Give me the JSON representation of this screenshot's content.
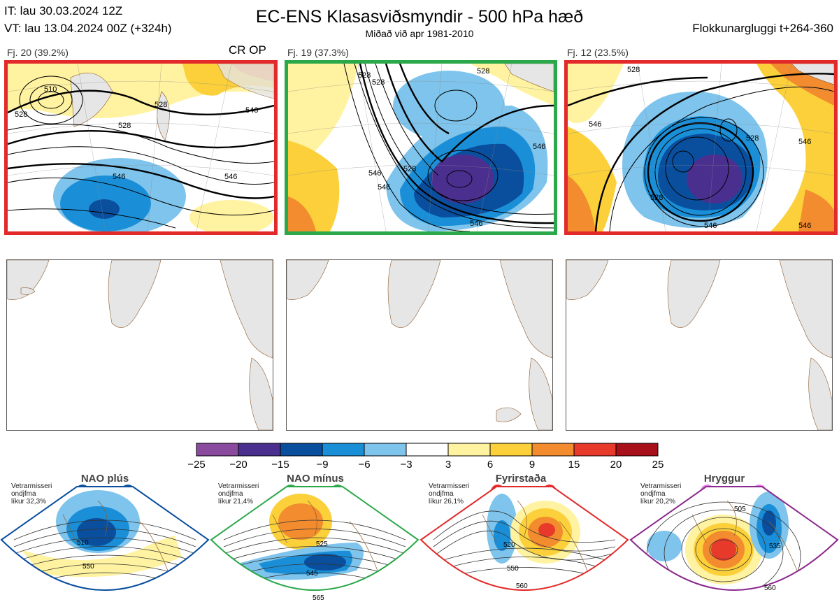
{
  "header": {
    "it_line": "IT: lau 30.03.2024 12Z",
    "vt_line": "VT: lau 13.04.2024 00Z  (+324h)",
    "title": "EC-ENS Klasasviðsmyndir - 500 hPa hæð",
    "subtitle": "Miðað við apr 1981-2010",
    "window": "Flokkunargluggi t+264-360"
  },
  "clusters": [
    {
      "label": "Fj. 20 (39.2%)",
      "badge": "CR OP",
      "border_color": "#e32a2a"
    },
    {
      "label": "Fj. 19 (37.3%)",
      "badge": "",
      "border_color": "#2ba84a"
    },
    {
      "label": "Fj. 12 (23.5%)",
      "badge": "",
      "border_color": "#e32a2a"
    }
  ],
  "contour_labels": {
    "cluster1": [
      "510",
      "528",
      "528",
      "528",
      "546",
      "546",
      "546"
    ],
    "cluster2": [
      "528",
      "528",
      "546",
      "546",
      "528",
      "546",
      "528",
      "546"
    ],
    "cluster3": [
      "528",
      "546",
      "528",
      "546",
      "528",
      "546",
      "546"
    ]
  },
  "chart_data": {
    "type": "heatmap",
    "colorbar": {
      "ticks": [
        "−25",
        "−20",
        "−15",
        "−9",
        "−6",
        "−3",
        "3",
        "6",
        "9",
        "15",
        "20",
        "25"
      ],
      "colors": [
        "#8a4a9e",
        "#4a2f8f",
        "#0a4f9e",
        "#1a8fd8",
        "#7ec4ec",
        "#ffffff",
        "#fff2a0",
        "#fbd03a",
        "#f28c2e",
        "#e83a2a",
        "#a8111a"
      ]
    }
  },
  "regimes": [
    {
      "name": "NAO plús",
      "stat_line1": "Vetrarmisseri",
      "stat_line2": "ondjfma",
      "stat_line3": "líkur 32,3%",
      "color": "#0a4f9e",
      "labels": [
        "510",
        "550"
      ]
    },
    {
      "name": "NAO mínus",
      "stat_line1": "Vetrarmisseri",
      "stat_line2": "ondjfma",
      "stat_line3": "líkur 21,4%",
      "color": "#2ba84a",
      "labels": [
        "525",
        "545",
        "565"
      ]
    },
    {
      "name": "Fyrirstaða",
      "stat_line1": "Vetrarmisseri",
      "stat_line2": "ondjfma",
      "stat_line3": "líkur 26,1%",
      "color": "#e32a2a",
      "labels": [
        "520",
        "550",
        "560"
      ]
    },
    {
      "name": "Hryggur",
      "stat_line1": "Vetrarmisseri",
      "stat_line2": "ondjfma",
      "stat_line3": "líkur 20,2%",
      "color": "#8b2a8f",
      "labels": [
        "505",
        "535",
        "560"
      ]
    }
  ]
}
